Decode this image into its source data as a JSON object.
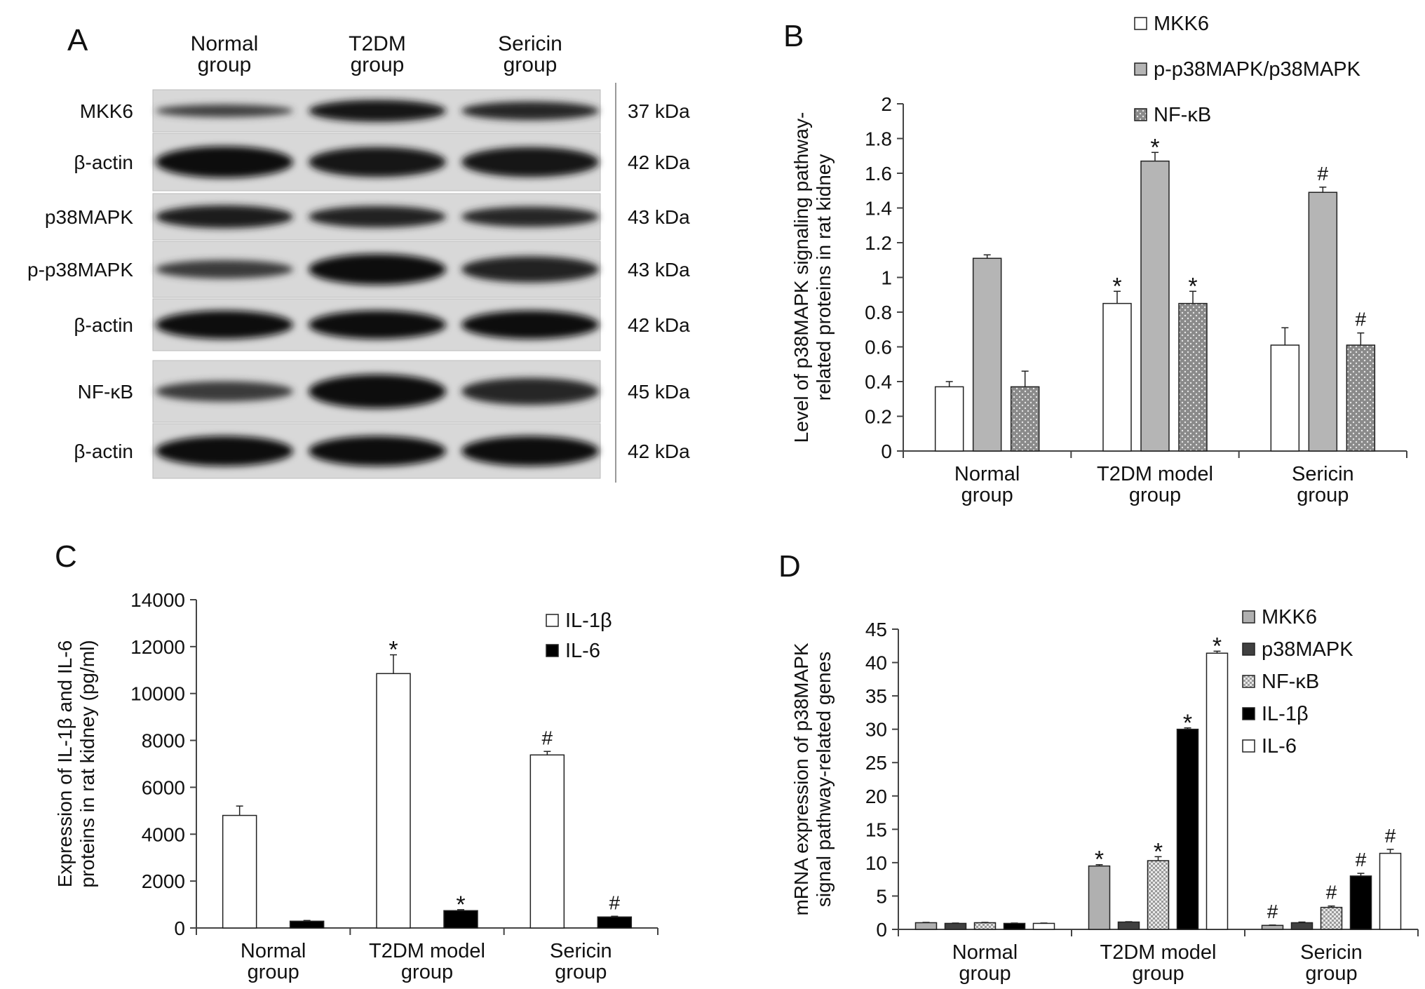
{
  "panels": {
    "A": "A",
    "B": "B",
    "C": "C",
    "D": "D"
  },
  "blot": {
    "columns": [
      {
        "line1": "Normal",
        "line2": "group"
      },
      {
        "line1": "T2DM",
        "line2": "group"
      },
      {
        "line1": "Sericin",
        "line2": "group"
      }
    ],
    "bands": [
      {
        "label": "MKK6",
        "kda": "37 kDa",
        "intensity": [
          0.55,
          0.95,
          0.8
        ]
      },
      {
        "label": "β-actin",
        "kda": "42 kDa",
        "intensity": [
          1.0,
          0.95,
          0.95
        ]
      },
      {
        "label": "p38MAPK",
        "kda": "43 kDa",
        "intensity": [
          0.9,
          0.85,
          0.8
        ]
      },
      {
        "label": "p-p38MAPK",
        "kda": "43 kDa",
        "intensity": [
          0.6,
          1.0,
          0.85
        ]
      },
      {
        "label": "β-actin",
        "kda": "42 kDa",
        "intensity": [
          1.0,
          1.0,
          1.0
        ]
      },
      {
        "label": "NF-κB",
        "kda": "45 kDa",
        "intensity": [
          0.6,
          1.0,
          0.8
        ]
      },
      {
        "label": "β-actin",
        "kda": "42 kDa",
        "intensity": [
          1.0,
          1.0,
          1.0
        ]
      }
    ]
  },
  "chart_data": [
    {
      "id": "B",
      "type": "bar",
      "categories": [
        [
          "Normal",
          "group"
        ],
        [
          "T2DM model",
          "group"
        ],
        [
          "Sericin",
          "group"
        ]
      ],
      "ylabel": [
        "Level of p38MAPK signaling pathway-",
        "related proteins in rat kidney"
      ],
      "ylim": [
        0,
        2
      ],
      "yticks": [
        0,
        0.2,
        0.4,
        0.6,
        0.8,
        1,
        1.2,
        1.4,
        1.6,
        1.8,
        2
      ],
      "ytick_labels": [
        "0",
        "0.2",
        "0.4",
        "0.6",
        "0.8",
        "1",
        "1.2",
        "1.4",
        "1.6",
        "1.8",
        "2"
      ],
      "legend_position": "top-right",
      "series": [
        {
          "name": "MKK6",
          "values": [
            0.37,
            0.85,
            0.61
          ],
          "errors": [
            0.03,
            0.07,
            0.1
          ],
          "marks": [
            "",
            "*",
            ""
          ],
          "fill": "#ffffff",
          "pattern": "none"
        },
        {
          "name": "p-p38MAPK/p38MAPK",
          "values": [
            1.11,
            1.67,
            1.49
          ],
          "errors": [
            0.02,
            0.05,
            0.03
          ],
          "marks": [
            "",
            "*",
            "#"
          ],
          "fill": "#b5b5b5",
          "pattern": "none"
        },
        {
          "name": "NF-κB",
          "values": [
            0.37,
            0.85,
            0.61
          ],
          "errors": [
            0.09,
            0.07,
            0.07
          ],
          "marks": [
            "",
            "*",
            "#"
          ],
          "fill": "#8a8a8a",
          "pattern": "dots"
        }
      ]
    },
    {
      "id": "C",
      "type": "bar",
      "categories": [
        [
          "Normal",
          "group"
        ],
        [
          "T2DM model",
          "group"
        ],
        [
          "Sericin",
          "group"
        ]
      ],
      "ylabel": [
        "Expression of IL-1β and IL-6",
        "proteins in rat kidney (pg/ml)"
      ],
      "ylim": [
        0,
        14000
      ],
      "yticks": [
        0,
        2000,
        4000,
        6000,
        8000,
        10000,
        12000,
        14000
      ],
      "ytick_labels": [
        "0",
        "2000",
        "4000",
        "6000",
        "8000",
        "10000",
        "12000",
        "14000"
      ],
      "legend_position": "top-right",
      "series": [
        {
          "name": "IL-1β",
          "values": [
            4800,
            10850,
            7380
          ],
          "errors": [
            400,
            800,
            150
          ],
          "marks": [
            "",
            "*",
            "#"
          ],
          "fill": "#ffffff",
          "pattern": "none"
        },
        {
          "name": "IL-6",
          "values": [
            290,
            740,
            470
          ],
          "errors": [
            30,
            40,
            30
          ],
          "marks": [
            "",
            "*",
            "#"
          ],
          "fill": "#000000",
          "pattern": "none"
        }
      ]
    },
    {
      "id": "D",
      "type": "bar",
      "categories": [
        [
          "Normal",
          "group"
        ],
        [
          "T2DM model",
          "group"
        ],
        [
          "Sericin",
          "group"
        ]
      ],
      "ylabel": [
        "mRNA expression of p38MAPK",
        "signal pathway-related genes"
      ],
      "ylim": [
        0,
        45
      ],
      "yticks": [
        0,
        5,
        10,
        15,
        20,
        25,
        30,
        35,
        40,
        45
      ],
      "ytick_labels": [
        "0",
        "5",
        "10",
        "15",
        "20",
        "25",
        "30",
        "35",
        "40",
        "45"
      ],
      "legend_position": "top-right",
      "series": [
        {
          "name": "MKK6",
          "values": [
            1.0,
            9.5,
            0.6
          ],
          "errors": [
            0.05,
            0.2,
            0.05
          ],
          "marks": [
            "",
            "*",
            "#"
          ],
          "fill": "#b0b0b0",
          "pattern": "none"
        },
        {
          "name": "p38MAPK",
          "values": [
            0.9,
            1.1,
            1.0
          ],
          "errors": [
            0.05,
            0.05,
            0.1
          ],
          "marks": [
            "",
            "",
            ""
          ],
          "fill": "#404040",
          "pattern": "none"
        },
        {
          "name": "NF-κB",
          "values": [
            1.0,
            10.3,
            3.3
          ],
          "errors": [
            0.05,
            0.6,
            0.2
          ],
          "marks": [
            "",
            "*",
            "#"
          ],
          "fill": "#dcdcdc",
          "pattern": "checks"
        },
        {
          "name": "IL-1β",
          "values": [
            0.9,
            30.0,
            8.0
          ],
          "errors": [
            0.05,
            0.2,
            0.4
          ],
          "marks": [
            "",
            "*",
            "#"
          ],
          "fill": "#000000",
          "pattern": "none"
        },
        {
          "name": "IL-6",
          "values": [
            0.9,
            41.4,
            11.4
          ],
          "errors": [
            0.05,
            0.3,
            0.6
          ],
          "marks": [
            "",
            "*",
            "#"
          ],
          "fill": "#ffffff",
          "pattern": "none"
        }
      ]
    }
  ]
}
